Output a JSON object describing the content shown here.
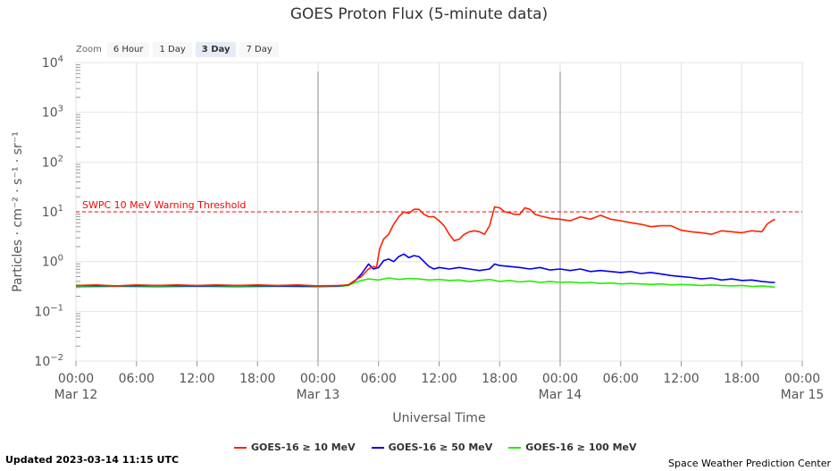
{
  "zoom": {
    "label": "Zoom",
    "options": [
      {
        "label": "6 Hour",
        "active": false
      },
      {
        "label": "1 Day",
        "active": false
      },
      {
        "label": "3 Day",
        "active": true
      },
      {
        "label": "7 Day",
        "active": false
      }
    ]
  },
  "footer": {
    "updated": "Updated 2023-03-14 11:15 UTC",
    "credit": "Space Weather Prediction Center"
  },
  "chart_data": {
    "type": "line",
    "title": "GOES Proton Flux (5-minute data)",
    "xlabel": "Universal Time",
    "ylabel": "Particles · cm⁻² · s⁻¹ · sr⁻¹",
    "y_scale": "log",
    "ylim": [
      -2,
      4
    ],
    "y_ticks": [
      {
        "value": 4,
        "base": "10",
        "exp": "4"
      },
      {
        "value": 3,
        "base": "10",
        "exp": "3"
      },
      {
        "value": 2,
        "base": "10",
        "exp": "2"
      },
      {
        "value": 1,
        "base": "10",
        "exp": "1"
      },
      {
        "value": 0,
        "base": "10",
        "exp": "0"
      },
      {
        "value": -1,
        "base": "10",
        "exp": "−1"
      },
      {
        "value": -2,
        "base": "10",
        "exp": "−2"
      }
    ],
    "x_unit": "hours since 2023-03-12 00:00 UTC",
    "xlim": [
      0,
      72
    ],
    "x_ticks": [
      {
        "hour": 0,
        "label": "00:00",
        "date": "Mar 12"
      },
      {
        "hour": 6,
        "label": "06:00",
        "date": ""
      },
      {
        "hour": 12,
        "label": "12:00",
        "date": ""
      },
      {
        "hour": 18,
        "label": "18:00",
        "date": ""
      },
      {
        "hour": 24,
        "label": "00:00",
        "date": "Mar 13"
      },
      {
        "hour": 30,
        "label": "06:00",
        "date": ""
      },
      {
        "hour": 36,
        "label": "12:00",
        "date": ""
      },
      {
        "hour": 42,
        "label": "18:00",
        "date": ""
      },
      {
        "hour": 48,
        "label": "00:00",
        "date": "Mar 14"
      },
      {
        "hour": 54,
        "label": "06:00",
        "date": ""
      },
      {
        "hour": 60,
        "label": "12:00",
        "date": ""
      },
      {
        "hour": 66,
        "label": "18:00",
        "date": ""
      },
      {
        "hour": 72,
        "label": "00:00",
        "date": "Mar 15"
      }
    ],
    "day_lines": [
      24,
      48
    ],
    "threshold": {
      "label": "SWPC 10 MeV Warning Threshold",
      "value": 1,
      "color": "#ff0000"
    },
    "series": [
      {
        "name": "GOES-16 ≥ 10 MeV",
        "color": "#ff2200",
        "points": [
          [
            0,
            -0.48
          ],
          [
            2,
            -0.47
          ],
          [
            4,
            -0.49
          ],
          [
            6,
            -0.47
          ],
          [
            8,
            -0.48
          ],
          [
            10,
            -0.47
          ],
          [
            12,
            -0.48
          ],
          [
            14,
            -0.47
          ],
          [
            16,
            -0.48
          ],
          [
            18,
            -0.47
          ],
          [
            20,
            -0.48
          ],
          [
            22,
            -0.47
          ],
          [
            24,
            -0.49
          ],
          [
            26,
            -0.48
          ],
          [
            27,
            -0.47
          ],
          [
            27.7,
            -0.37
          ],
          [
            28.3,
            -0.3
          ],
          [
            29,
            -0.15
          ],
          [
            29.5,
            -0.1
          ],
          [
            29.8,
            -0.12
          ],
          [
            30.1,
            0.25
          ],
          [
            30.5,
            0.45
          ],
          [
            31,
            0.55
          ],
          [
            31.5,
            0.75
          ],
          [
            32,
            0.9
          ],
          [
            32.5,
            1.0
          ],
          [
            33,
            0.97
          ],
          [
            33.5,
            1.05
          ],
          [
            34,
            1.05
          ],
          [
            34.5,
            0.95
          ],
          [
            35,
            0.9
          ],
          [
            35.5,
            0.9
          ],
          [
            36,
            0.82
          ],
          [
            36.5,
            0.72
          ],
          [
            37,
            0.55
          ],
          [
            37.5,
            0.42
          ],
          [
            38,
            0.45
          ],
          [
            38.5,
            0.55
          ],
          [
            39,
            0.6
          ],
          [
            39.5,
            0.62
          ],
          [
            40,
            0.6
          ],
          [
            40.5,
            0.55
          ],
          [
            41,
            0.72
          ],
          [
            41.5,
            1.1
          ],
          [
            42,
            1.08
          ],
          [
            42.5,
            1.0
          ],
          [
            43,
            0.98
          ],
          [
            43.5,
            0.95
          ],
          [
            44,
            0.95
          ],
          [
            44.5,
            1.08
          ],
          [
            45,
            1.05
          ],
          [
            45.5,
            0.95
          ],
          [
            46,
            0.92
          ],
          [
            47,
            0.87
          ],
          [
            48,
            0.85
          ],
          [
            49,
            0.82
          ],
          [
            50,
            0.9
          ],
          [
            51,
            0.85
          ],
          [
            52,
            0.93
          ],
          [
            53,
            0.85
          ],
          [
            54,
            0.82
          ],
          [
            55,
            0.78
          ],
          [
            56,
            0.75
          ],
          [
            57,
            0.7
          ],
          [
            58,
            0.72
          ],
          [
            59,
            0.72
          ],
          [
            60,
            0.63
          ],
          [
            61,
            0.6
          ],
          [
            62,
            0.58
          ],
          [
            63,
            0.55
          ],
          [
            64,
            0.62
          ],
          [
            65,
            0.6
          ],
          [
            66,
            0.58
          ],
          [
            67,
            0.62
          ],
          [
            68,
            0.6
          ],
          [
            68.5,
            0.75
          ],
          [
            69,
            0.82
          ],
          [
            69.3,
            0.85
          ]
        ]
      },
      {
        "name": "GOES-16 ≥ 50 MeV",
        "color": "#0000ee",
        "points": [
          [
            0,
            -0.48
          ],
          [
            4,
            -0.49
          ],
          [
            8,
            -0.48
          ],
          [
            12,
            -0.49
          ],
          [
            16,
            -0.48
          ],
          [
            20,
            -0.49
          ],
          [
            24,
            -0.49
          ],
          [
            26,
            -0.49
          ],
          [
            27,
            -0.47
          ],
          [
            27.7,
            -0.38
          ],
          [
            28.3,
            -0.25
          ],
          [
            29,
            -0.05
          ],
          [
            29.5,
            -0.15
          ],
          [
            30,
            -0.12
          ],
          [
            30.5,
            0.02
          ],
          [
            31,
            0.05
          ],
          [
            31.5,
            0.0
          ],
          [
            32,
            0.1
          ],
          [
            32.5,
            0.15
          ],
          [
            33,
            0.08
          ],
          [
            33.5,
            0.12
          ],
          [
            34,
            0.1
          ],
          [
            34.5,
            0.0
          ],
          [
            35,
            -0.1
          ],
          [
            35.5,
            -0.15
          ],
          [
            36,
            -0.12
          ],
          [
            37,
            -0.15
          ],
          [
            38,
            -0.12
          ],
          [
            39,
            -0.15
          ],
          [
            40,
            -0.18
          ],
          [
            41,
            -0.15
          ],
          [
            41.5,
            -0.05
          ],
          [
            42,
            -0.08
          ],
          [
            43,
            -0.1
          ],
          [
            44,
            -0.12
          ],
          [
            45,
            -0.15
          ],
          [
            46,
            -0.12
          ],
          [
            47,
            -0.17
          ],
          [
            48,
            -0.15
          ],
          [
            49,
            -0.18
          ],
          [
            50,
            -0.15
          ],
          [
            51,
            -0.2
          ],
          [
            52,
            -0.18
          ],
          [
            53,
            -0.2
          ],
          [
            54,
            -0.22
          ],
          [
            55,
            -0.2
          ],
          [
            56,
            -0.24
          ],
          [
            57,
            -0.22
          ],
          [
            58,
            -0.25
          ],
          [
            59,
            -0.28
          ],
          [
            60,
            -0.3
          ],
          [
            61,
            -0.32
          ],
          [
            62,
            -0.35
          ],
          [
            63,
            -0.33
          ],
          [
            64,
            -0.37
          ],
          [
            65,
            -0.35
          ],
          [
            66,
            -0.38
          ],
          [
            67,
            -0.37
          ],
          [
            68,
            -0.4
          ],
          [
            69,
            -0.42
          ],
          [
            69.3,
            -0.42
          ]
        ]
      },
      {
        "name": "GOES-16 ≥ 100 MeV",
        "color": "#22ee00",
        "points": [
          [
            0,
            -0.51
          ],
          [
            4,
            -0.5
          ],
          [
            8,
            -0.51
          ],
          [
            12,
            -0.5
          ],
          [
            16,
            -0.51
          ],
          [
            20,
            -0.5
          ],
          [
            24,
            -0.51
          ],
          [
            26,
            -0.5
          ],
          [
            27,
            -0.48
          ],
          [
            27.7,
            -0.42
          ],
          [
            28.3,
            -0.38
          ],
          [
            29,
            -0.35
          ],
          [
            30,
            -0.37
          ],
          [
            31,
            -0.33
          ],
          [
            32,
            -0.36
          ],
          [
            33,
            -0.34
          ],
          [
            34,
            -0.35
          ],
          [
            35,
            -0.37
          ],
          [
            36,
            -0.36
          ],
          [
            37,
            -0.38
          ],
          [
            38,
            -0.37
          ],
          [
            39,
            -0.4
          ],
          [
            40,
            -0.38
          ],
          [
            41,
            -0.36
          ],
          [
            42,
            -0.4
          ],
          [
            43,
            -0.38
          ],
          [
            44,
            -0.41
          ],
          [
            45,
            -0.39
          ],
          [
            46,
            -0.42
          ],
          [
            47,
            -0.4
          ],
          [
            48,
            -0.42
          ],
          [
            49,
            -0.41
          ],
          [
            50,
            -0.43
          ],
          [
            51,
            -0.42
          ],
          [
            52,
            -0.44
          ],
          [
            53,
            -0.43
          ],
          [
            54,
            -0.45
          ],
          [
            55,
            -0.44
          ],
          [
            56,
            -0.45
          ],
          [
            57,
            -0.46
          ],
          [
            58,
            -0.45
          ],
          [
            59,
            -0.47
          ],
          [
            60,
            -0.46
          ],
          [
            61,
            -0.47
          ],
          [
            62,
            -0.48
          ],
          [
            63,
            -0.47
          ],
          [
            64,
            -0.48
          ],
          [
            65,
            -0.49
          ],
          [
            66,
            -0.48
          ],
          [
            67,
            -0.5
          ],
          [
            68,
            -0.49
          ],
          [
            69,
            -0.51
          ],
          [
            69.3,
            -0.51
          ]
        ]
      }
    ]
  }
}
